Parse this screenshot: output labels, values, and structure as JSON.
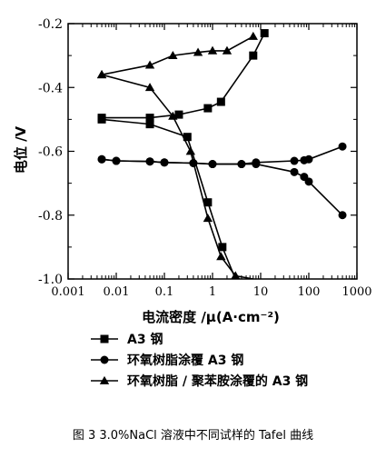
{
  "figure_caption": "图 3  3.0%NaCl 溶液中不同试样的 Tafel 曲线",
  "chart_data": {
    "type": "line",
    "xscale": "log",
    "xlabel": "电流密度 /μ(A·cm⁻²)",
    "ylabel": "电位 /V",
    "xlim": [
      0.001,
      1000
    ],
    "ylim": [
      -1.0,
      -0.2
    ],
    "xticks": [
      0.001,
      0.01,
      0.1,
      1,
      10,
      100,
      1000
    ],
    "xtick_labels": [
      "0.001",
      "0.01",
      "0.1",
      "1",
      "10",
      "100",
      "1000"
    ],
    "yticks": [
      -1.0,
      -0.8,
      -0.6,
      -0.4,
      -0.2
    ],
    "ytick_labels": [
      "-1.0",
      "-0.8",
      "-0.6",
      "-0.4",
      "-0.2"
    ],
    "legend_position": "below-plot",
    "series": [
      {
        "name": "A3 钢",
        "marker": "square",
        "branches": [
          {
            "x": [
              0.005,
              0.05,
              0.2,
              0.8,
              1.5,
              7,
              12
            ],
            "y": [
              -0.495,
              -0.495,
              -0.485,
              -0.465,
              -0.445,
              -0.3,
              -0.23
            ]
          },
          {
            "x": [
              0.005,
              0.05,
              0.3,
              0.8,
              1.6,
              3
            ],
            "y": [
              -0.5,
              -0.515,
              -0.555,
              -0.76,
              -0.9,
              -1.0
            ]
          }
        ]
      },
      {
        "name": "环氧树脂涂覆 A3 钢",
        "marker": "circle",
        "branches": [
          {
            "x": [
              0.005,
              0.01,
              0.05,
              0.1,
              0.4,
              1,
              4,
              8,
              50,
              80,
              100,
              500
            ],
            "y": [
              -0.625,
              -0.63,
              -0.632,
              -0.635,
              -0.637,
              -0.64,
              -0.64,
              -0.635,
              -0.63,
              -0.628,
              -0.625,
              -0.585
            ]
          },
          {
            "x": [
              0.005,
              0.01,
              0.05,
              0.1,
              0.4,
              1,
              4,
              8,
              50,
              80,
              100,
              500
            ],
            "y": [
              -0.625,
              -0.63,
              -0.632,
              -0.635,
              -0.637,
              -0.64,
              -0.64,
              -0.64,
              -0.665,
              -0.68,
              -0.695,
              -0.8
            ]
          }
        ]
      },
      {
        "name": "环氧树脂 / 聚苯胺涂覆的 A3 钢",
        "marker": "triangle",
        "branches": [
          {
            "x": [
              0.005,
              0.05,
              0.15,
              0.5,
              1,
              2,
              7
            ],
            "y": [
              -0.36,
              -0.33,
              -0.3,
              -0.29,
              -0.285,
              -0.285,
              -0.24
            ]
          },
          {
            "x": [
              0.005,
              0.05,
              0.15,
              0.35,
              0.8,
              1.5,
              3,
              7
            ],
            "y": [
              -0.36,
              -0.4,
              -0.49,
              -0.6,
              -0.81,
              -0.93,
              -0.99,
              -1.0
            ]
          }
        ]
      }
    ]
  }
}
